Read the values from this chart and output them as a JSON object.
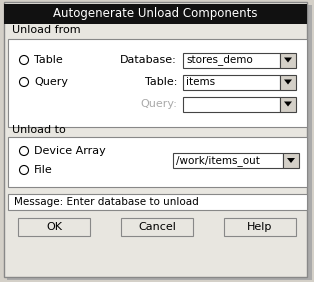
{
  "title": "Autogenerate Unload Components",
  "title_bg": "#111111",
  "title_color": "#ffffff",
  "dialog_bg": "#e8e6e0",
  "white": "#ffffff",
  "gray_bg": "#d4d0c8",
  "section1_label": "Unload from",
  "section2_label": "Unload to",
  "radio1": [
    "Table",
    "Query"
  ],
  "radio2": [
    "Device Array",
    "File"
  ],
  "db_label": "Database:",
  "table_label": "Table:",
  "query_label": "Query:",
  "db_value": "stores_demo",
  "table_value": "items",
  "query_value": "",
  "path_value": "/work/items_out",
  "message": "Message: Enter database to unload",
  "buttons": [
    "OK",
    "Cancel",
    "Help"
  ],
  "query_label_color": "#aaaaaa",
  "border_color": "#888888",
  "dark_border": "#444444"
}
